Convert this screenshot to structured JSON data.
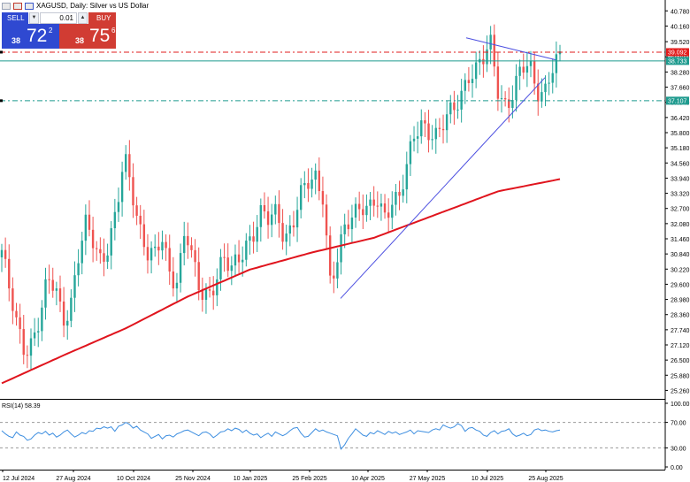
{
  "header": {
    "title": "XAGUSD, Daily:  Silver vs US Dollar"
  },
  "trade_panel": {
    "sell_label": "SELL",
    "buy_label": "BUY",
    "lot": "0.01",
    "sell_prefix": "38",
    "sell_big": "72",
    "sell_sup": "2",
    "buy_prefix": "38",
    "buy_big": "75",
    "buy_sup": "6"
  },
  "colors": {
    "bull": "#26a69a",
    "bear": "#ef5350",
    "ma": "#e0141d",
    "trendline": "#4b4ee0",
    "resistance": "#e21c1c",
    "support": "#1f9b8f",
    "rsi": "#3d8ee0",
    "grid": "#ffffff"
  },
  "chart_data": [
    {
      "type": "candlestick",
      "symbol": "XAGUSD",
      "timeframe": "Daily",
      "ylim": [
        24.95,
        41.08
      ],
      "y_ticks": [
        "40.780",
        "40.160",
        "39.520",
        "38.900",
        "38.280",
        "37.660",
        "37.040",
        "36.420",
        "35.800",
        "35.180",
        "34.560",
        "33.940",
        "33.320",
        "32.700",
        "32.080",
        "31.460",
        "30.840",
        "30.220",
        "29.600",
        "28.980",
        "28.360",
        "27.740",
        "27.120",
        "26.500",
        "25.880",
        "25.260"
      ],
      "x_ticks": [
        "12 Jul 2024",
        "27 Aug 2024",
        "10 Oct 2024",
        "25 Nov 2024",
        "10 Jan 2025",
        "25 Feb 2025",
        "10 Apr 2025",
        "27 May 2025",
        "10 Jul 2025",
        "25 Aug 2025"
      ],
      "close_path": [
        [
          "12 Jul 2024",
          31.0
        ],
        [
          "Jul 2024",
          29.2
        ],
        [
          "Jul 2024",
          27.8
        ],
        [
          "early Aug 2024",
          27.0
        ],
        [
          "Aug 2024",
          27.4
        ],
        [
          "Aug 2024",
          28.2
        ],
        [
          "Aug 2024",
          29.6
        ],
        [
          "27 Aug 2024",
          29.5
        ],
        [
          "early Sep 2024",
          28.3
        ],
        [
          "Sep 2024",
          28.8
        ],
        [
          "Sep 2024",
          30.6
        ],
        [
          "late Sep 2024",
          31.9
        ],
        [
          "late Sep 2024",
          31.4
        ],
        [
          "early Oct 2024",
          30.7
        ],
        [
          "10 Oct 2024",
          31.3
        ],
        [
          "mid Oct 2024",
          32.4
        ],
        [
          "late Oct 2024",
          34.7
        ],
        [
          "late Oct 2024",
          33.6
        ],
        [
          "early Nov 2024",
          32.1
        ],
        [
          "Nov 2024",
          30.9
        ],
        [
          "Nov 2024",
          30.6
        ],
        [
          "mid Nov 2024",
          31.4
        ],
        [
          "25 Nov 2024",
          30.1
        ],
        [
          "early Dec 2024",
          29.9
        ],
        [
          "Dec 2024",
          31.9
        ],
        [
          "Dec 2024",
          30.3
        ],
        [
          "late Dec 2024",
          29.2
        ],
        [
          "Dec 2024",
          29.3
        ],
        [
          "early Jan 2025",
          29.9
        ],
        [
          "10 Jan 2025",
          30.6
        ],
        [
          "mid Jan 2025",
          30.0
        ],
        [
          "Jan 2025",
          30.7
        ],
        [
          "late Jan 2025",
          31.4
        ],
        [
          "early Feb 2025",
          31.8
        ],
        [
          "Feb 2025",
          32.4
        ],
        [
          "Feb 2025",
          32.1
        ],
        [
          "mid Feb 2025",
          32.7
        ],
        [
          "25 Feb 2025",
          31.6
        ],
        [
          "early Mar 2025",
          32.0
        ],
        [
          "Mar 2025",
          33.0
        ],
        [
          "mid Mar 2025",
          33.7
        ],
        [
          "late Mar 2025",
          34.1
        ],
        [
          "early Apr 2025",
          33.4
        ],
        [
          "early Apr 2025",
          29.4
        ],
        [
          "10 Apr 2025",
          30.6
        ],
        [
          "mid Apr 2025",
          32.0
        ],
        [
          "late Apr 2025",
          32.7
        ],
        [
          "late Apr 2025",
          33.0
        ],
        [
          "early May 2025",
          32.5
        ],
        [
          "May 2025",
          32.9
        ],
        [
          "May 2025",
          32.3
        ],
        [
          "mid May 2025",
          33.2
        ],
        [
          "late May 2025",
          33.3
        ],
        [
          "27 May 2025",
          34.3
        ],
        [
          "early Jun 2025",
          35.6
        ],
        [
          "Jun 2025",
          36.2
        ],
        [
          "Jun 2025",
          36.0
        ],
        [
          "mid Jun 2025",
          35.7
        ],
        [
          "late Jun 2025",
          36.2
        ],
        [
          "late Jun 2025",
          36.6
        ],
        [
          "early Jul 2025",
          37.4
        ],
        [
          "10 Jul 2025",
          38.3
        ],
        [
          "mid Jul 2025",
          38.3
        ],
        [
          "mid Jul 2025",
          38.7
        ],
        [
          "late Jul 2025",
          39.4
        ],
        [
          "late Jul 2025",
          37.5
        ],
        [
          "early Aug 2025",
          37.0
        ],
        [
          "Aug 2025",
          37.4
        ],
        [
          "Aug 2025",
          38.3
        ],
        [
          "Aug 2025",
          38.6
        ],
        [
          "mid Aug 2025",
          37.7
        ],
        [
          "mid Aug 2025",
          37.5
        ],
        [
          "late Aug 2025",
          38.3
        ],
        [
          "25 Aug 2025",
          38.7
        ]
      ],
      "moving_average": {
        "path": [
          [
            "12 Jul 2024",
            25.55
          ],
          [
            "Sep 2024",
            26.7
          ],
          [
            "10 Oct 2024",
            27.8
          ],
          [
            "25 Nov 2024",
            29.1
          ],
          [
            "10 Jan 2025",
            30.2
          ],
          [
            "25 Feb 2025",
            30.9
          ],
          [
            "10 Apr 2025",
            31.5
          ],
          [
            "27 May 2025",
            32.45
          ],
          [
            "10 Jul 2025",
            33.4
          ],
          [
            "25 Aug 2025",
            33.9
          ]
        ]
      },
      "price_levels": [
        {
          "value": "39.092",
          "style": "resistance"
        },
        {
          "value": "38.733",
          "style": "current"
        },
        {
          "value": "37.107",
          "style": "support"
        }
      ],
      "trendlines": [
        {
          "from": [
            "10 Apr 2025",
            29.0
          ],
          "to": [
            "25 Aug 2025",
            38.0
          ]
        },
        {
          "from": [
            "late Jul 2025",
            39.6
          ],
          "to": [
            "25 Aug 2025",
            38.8
          ]
        }
      ]
    },
    {
      "type": "line",
      "title": "RSI(14) 58.39",
      "ylim": [
        0,
        100
      ],
      "y_ticks": [
        "100.00",
        "70.00",
        "30.00",
        "0.00"
      ],
      "levels": [
        70,
        30
      ],
      "values": [
        57,
        52,
        48,
        46,
        55,
        50,
        48,
        42,
        44,
        50,
        54,
        52,
        56,
        50,
        53,
        47,
        50,
        55,
        58,
        52,
        47,
        50,
        54,
        52,
        57,
        56,
        61,
        60,
        63,
        61,
        63,
        56,
        64,
        66,
        70,
        67,
        61,
        64,
        58,
        55,
        52,
        45,
        48,
        51,
        44,
        49,
        50,
        47,
        52,
        54,
        57,
        58,
        55,
        52,
        49,
        54,
        55,
        52,
        46,
        50,
        55,
        56,
        60,
        57,
        61,
        59,
        54,
        58,
        53,
        50,
        52,
        46,
        50,
        53,
        48,
        55,
        52,
        49,
        52,
        57,
        61,
        62,
        53,
        47,
        48,
        54,
        60,
        56,
        58,
        55,
        53,
        51,
        49,
        28,
        35,
        45,
        52,
        60,
        55,
        50,
        48,
        54,
        52,
        57,
        54,
        51,
        56,
        53,
        55,
        51,
        53,
        55,
        58,
        52,
        57,
        56,
        55,
        54,
        58,
        60,
        58,
        66,
        63,
        61,
        63,
        68,
        65,
        56,
        61,
        62,
        58,
        56,
        50,
        48,
        54,
        57,
        52,
        56,
        57,
        60,
        52,
        48,
        50,
        53,
        49,
        51,
        58,
        60,
        57,
        58,
        56,
        55,
        57,
        58
      ]
    }
  ]
}
